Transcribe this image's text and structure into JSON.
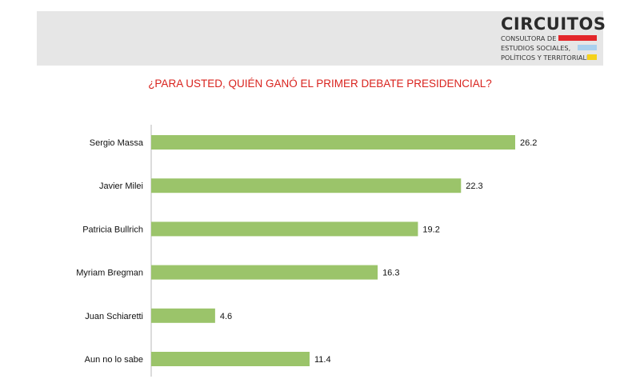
{
  "logo": {
    "name": "CIRCUITOS",
    "line1": "CONSULTORA DE",
    "line2": "ESTUDIOS SOCIALES,",
    "line3": "POLÍTICOS Y TERRITORIALES",
    "stripe_colors": [
      "#e3262a",
      "#a9d0ee",
      "#f5d21b"
    ]
  },
  "colors": {
    "bar": "#9bc46a",
    "title": "#d9231e",
    "axis": "#b8b8b8"
  },
  "chart_data": {
    "type": "bar",
    "orientation": "horizontal",
    "title": "¿PARA USTED, QUIÉN GANÓ EL PRIMER DEBATE PRESIDENCIAL?",
    "categories": [
      "Sergio Massa",
      "Javier Milei",
      "Patricia Bullrich",
      "Myriam Bregman",
      "Juan Schiaretti",
      "Aun no lo sabe"
    ],
    "values": [
      26.2,
      22.3,
      19.2,
      16.3,
      4.6,
      11.4
    ],
    "data_labels": [
      "26.2",
      "22.3",
      "19.2",
      "16.3",
      "4.6",
      "11.4"
    ],
    "xlim": [
      0,
      26.2
    ],
    "grid": false,
    "legend": "none"
  }
}
